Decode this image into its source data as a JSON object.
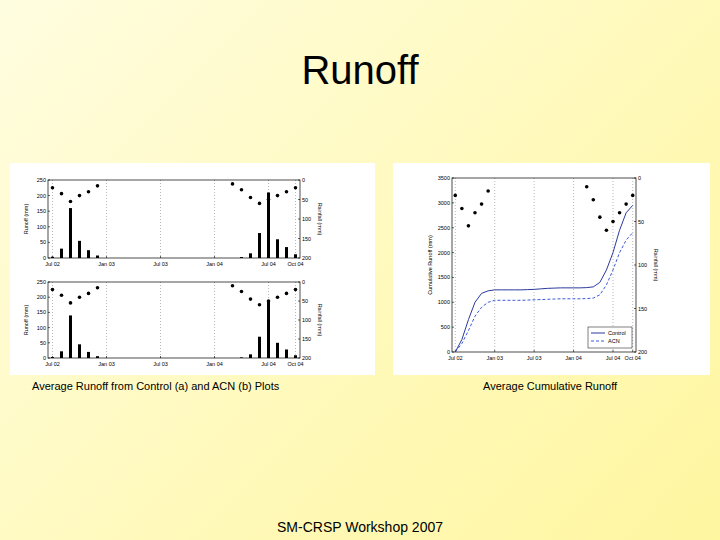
{
  "slide": {
    "title": "Runoff",
    "captions": [
      "Average Runoff from Control (a) and ACN (b) Plots",
      "Average Cumulative Runoff"
    ],
    "footer": "SM-CRSP Workshop 2007"
  },
  "chart_data": [
    {
      "type": "bar",
      "categories": [
        "Jul 02",
        null,
        null,
        null,
        null,
        null,
        "Jan 03",
        null,
        null,
        null,
        null,
        null,
        "Jul 03",
        null,
        null,
        null,
        null,
        null,
        "Jan 04",
        null,
        null,
        null,
        null,
        null,
        "Jul 04",
        null,
        null,
        "Oct 04"
      ],
      "ylabel": "Runoff (mm)",
      "y2label": "Rainfall (mm)",
      "ylim": [
        0,
        250
      ],
      "yticks": [
        0,
        50,
        100,
        150,
        200,
        250
      ],
      "y2lim": [
        200,
        0
      ],
      "y2ticks": [
        0,
        50,
        100,
        150,
        200
      ],
      "grid": true,
      "series": [
        {
          "type": "bar",
          "color": "#000000",
          "values": [
            4,
            30,
            160,
            55,
            25,
            8,
            0,
            0,
            0,
            0,
            0,
            0,
            0,
            0,
            0,
            0,
            0,
            0,
            0,
            0,
            0,
            3,
            15,
            80,
            210,
            60,
            35,
            12
          ]
        },
        {
          "type": "scatter",
          "axis": "y2",
          "color": "#000000",
          "marker": "circle",
          "values": [
            20,
            35,
            55,
            40,
            30,
            15,
            null,
            null,
            null,
            null,
            null,
            null,
            null,
            null,
            null,
            null,
            null,
            null,
            null,
            null,
            10,
            25,
            45,
            60,
            50,
            40,
            30,
            20
          ]
        }
      ]
    },
    {
      "type": "bar",
      "categories": [
        "Jul 02",
        null,
        null,
        null,
        null,
        null,
        "Jan 03",
        null,
        null,
        null,
        null,
        null,
        "Jul 03",
        null,
        null,
        null,
        null,
        null,
        "Jan 04",
        null,
        null,
        null,
        null,
        null,
        "Jul 04",
        null,
        null,
        "Oct 04"
      ],
      "ylabel": "Runoff (mm)",
      "y2label": "Rainfall (mm)",
      "ylim": [
        0,
        250
      ],
      "yticks": [
        0,
        50,
        100,
        150,
        200,
        250
      ],
      "y2lim": [
        200,
        0
      ],
      "y2ticks": [
        0,
        50,
        100,
        150,
        200
      ],
      "grid": true,
      "series": [
        {
          "type": "bar",
          "color": "#000000",
          "values": [
            3,
            22,
            140,
            45,
            20,
            6,
            0,
            0,
            0,
            0,
            0,
            0,
            0,
            0,
            0,
            0,
            0,
            0,
            0,
            0,
            0,
            2,
            12,
            70,
            190,
            50,
            28,
            9
          ]
        },
        {
          "type": "scatter",
          "axis": "y2",
          "color": "#000000",
          "marker": "circle",
          "values": [
            20,
            35,
            55,
            40,
            30,
            15,
            null,
            null,
            null,
            null,
            null,
            null,
            null,
            null,
            null,
            null,
            null,
            null,
            null,
            null,
            10,
            25,
            45,
            60,
            50,
            40,
            30,
            20
          ]
        }
      ]
    },
    {
      "type": "line",
      "categories": [
        "Jul 02",
        null,
        null,
        null,
        null,
        null,
        "Jan 03",
        null,
        null,
        null,
        null,
        null,
        "Jul 03",
        null,
        null,
        null,
        null,
        null,
        "Jan 04",
        null,
        null,
        null,
        null,
        null,
        "Jul 04",
        null,
        null,
        "Oct 04"
      ],
      "ylabel": "Cumulative Runoff (mm)",
      "y2label": "Rainfall (mm)",
      "ylim": [
        0,
        3500
      ],
      "yticks": [
        0,
        500,
        1000,
        1500,
        2000,
        2500,
        3000,
        3500
      ],
      "y2lim": [
        200,
        0
      ],
      "y2ticks": [
        0,
        50,
        100,
        150,
        200
      ],
      "grid": true,
      "legend": "lower right",
      "series": [
        {
          "name": "Control",
          "type": "line",
          "color": "#2b3a9c",
          "line_style": "solid",
          "values": [
            0,
            250,
            650,
            1000,
            1180,
            1230,
            1250,
            1250,
            1250,
            1250,
            1250,
            1255,
            1260,
            1270,
            1280,
            1285,
            1290,
            1290,
            1290,
            1290,
            1295,
            1310,
            1400,
            1650,
            2000,
            2450,
            2800,
            2950
          ]
        },
        {
          "name": "ACN",
          "type": "line",
          "color": "#3c5ad6",
          "line_style": "dashed",
          "values": [
            0,
            170,
            430,
            720,
            900,
            1000,
            1040,
            1040,
            1040,
            1040,
            1040,
            1045,
            1050,
            1055,
            1060,
            1065,
            1070,
            1070,
            1070,
            1070,
            1075,
            1085,
            1150,
            1350,
            1650,
            2000,
            2250,
            2400
          ]
        },
        {
          "type": "scatter",
          "axis": "y2",
          "color": "#000000",
          "marker": "circle",
          "values": [
            20,
            35,
            55,
            40,
            30,
            15,
            null,
            null,
            null,
            null,
            null,
            null,
            null,
            null,
            null,
            null,
            null,
            null,
            null,
            null,
            10,
            25,
            45,
            60,
            50,
            40,
            30,
            20
          ]
        }
      ]
    }
  ]
}
